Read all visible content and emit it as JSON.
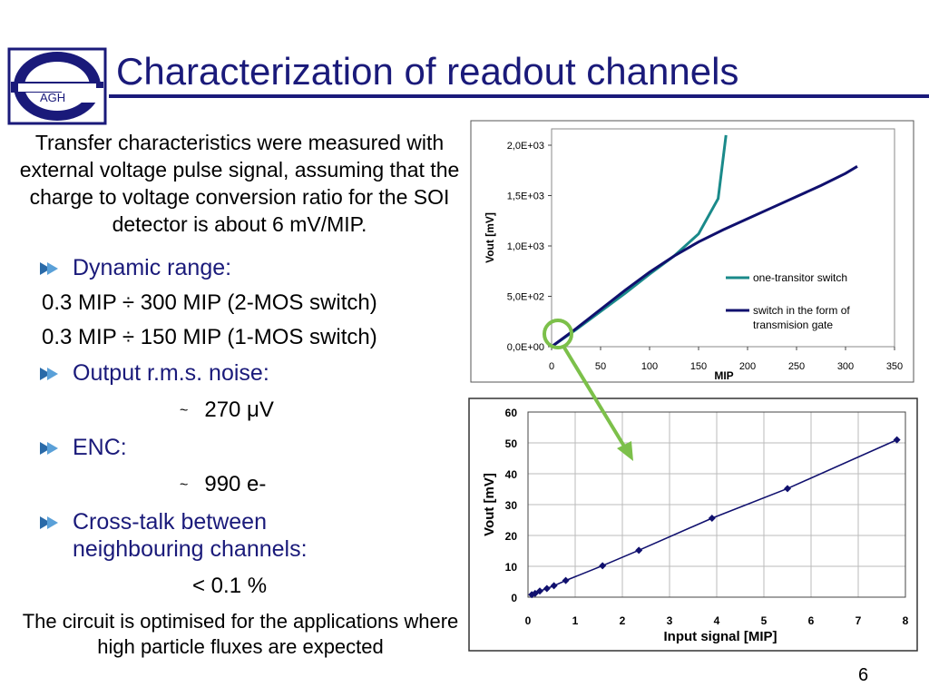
{
  "logo": {
    "text": "AGH",
    "icon": "agh-e-logo-icon"
  },
  "title": "Characterization of readout channels",
  "intro": "Transfer characteristics were measured with external voltage pulse signal, assuming that the charge to voltage conversion ratio for the SOI detector is about 6 mV/MIP.",
  "items": {
    "dynamic_range": "Dynamic range:",
    "dr_line1": "0.3 MIP ÷ 300 MIP (2-MOS switch)",
    "dr_line2": "0.3 MIP ÷ 150 MIP (1-MOS switch)",
    "noise": "Output r.m.s. noise:",
    "noise_tilde": "~",
    "noise_value": "270 μV",
    "enc": "ENC:",
    "enc_tilde": "~",
    "enc_value": "990 e-",
    "crosstalk_1": "Cross-talk between",
    "crosstalk_2": "neighbouring channels:",
    "crosstalk_value": "< 0.1 %"
  },
  "footer": "The circuit is optimised for the applications where high particle fluxes are expected",
  "page_number": "6",
  "colors": {
    "title": "#1a1a7a",
    "teal": "#1a8a8a",
    "navy": "#10106e",
    "highlight": "#7cc04a"
  },
  "chart_data": [
    {
      "type": "line",
      "title": "",
      "xlabel": "MIP",
      "ylabel": "Vout [mV]",
      "xlim": [
        0,
        350
      ],
      "ylim": [
        0,
        2000
      ],
      "x_ticks": [
        "0",
        "50",
        "100",
        "150",
        "200",
        "250",
        "300",
        "350"
      ],
      "y_ticks": [
        "0,0E+00",
        "5,0E+02",
        "1,0E+03",
        "1,5E+03",
        "2,0E+03"
      ],
      "legend_position": "right",
      "series": [
        {
          "name": "one-transitor switch",
          "color": "#1a8a8a",
          "x": [
            0,
            25,
            50,
            75,
            100,
            125,
            150,
            170,
            178
          ],
          "y": [
            0,
            170,
            350,
            530,
            720,
            900,
            1120,
            1470,
            2100
          ]
        },
        {
          "name": "switch in the form of transmision gate",
          "color": "#10106e",
          "x": [
            0,
            25,
            50,
            75,
            100,
            125,
            150,
            175,
            200,
            225,
            250,
            275,
            300,
            312
          ],
          "y": [
            0,
            180,
            370,
            560,
            740,
            900,
            1040,
            1160,
            1270,
            1380,
            1490,
            1600,
            1720,
            1790
          ]
        }
      ]
    },
    {
      "type": "scatter",
      "title": "",
      "xlabel": "Input signal [MIP]",
      "ylabel": "Vout [mV]",
      "xlim": [
        0,
        8
      ],
      "ylim": [
        0,
        60
      ],
      "x_ticks": [
        "0",
        "1",
        "2",
        "3",
        "4",
        "5",
        "6",
        "7",
        "8"
      ],
      "y_ticks": [
        "0",
        "10",
        "20",
        "30",
        "40",
        "50",
        "60"
      ],
      "series": [
        {
          "name": "",
          "color": "#10106e",
          "x": [
            0.08,
            0.15,
            0.25,
            0.4,
            0.55,
            0.8,
            1.58,
            2.35,
            3.9,
            5.5,
            7.82
          ],
          "y": [
            0.8,
            1.2,
            2.0,
            2.8,
            3.7,
            5.4,
            10.2,
            15.2,
            25.6,
            35.2,
            51.0
          ]
        }
      ]
    }
  ]
}
